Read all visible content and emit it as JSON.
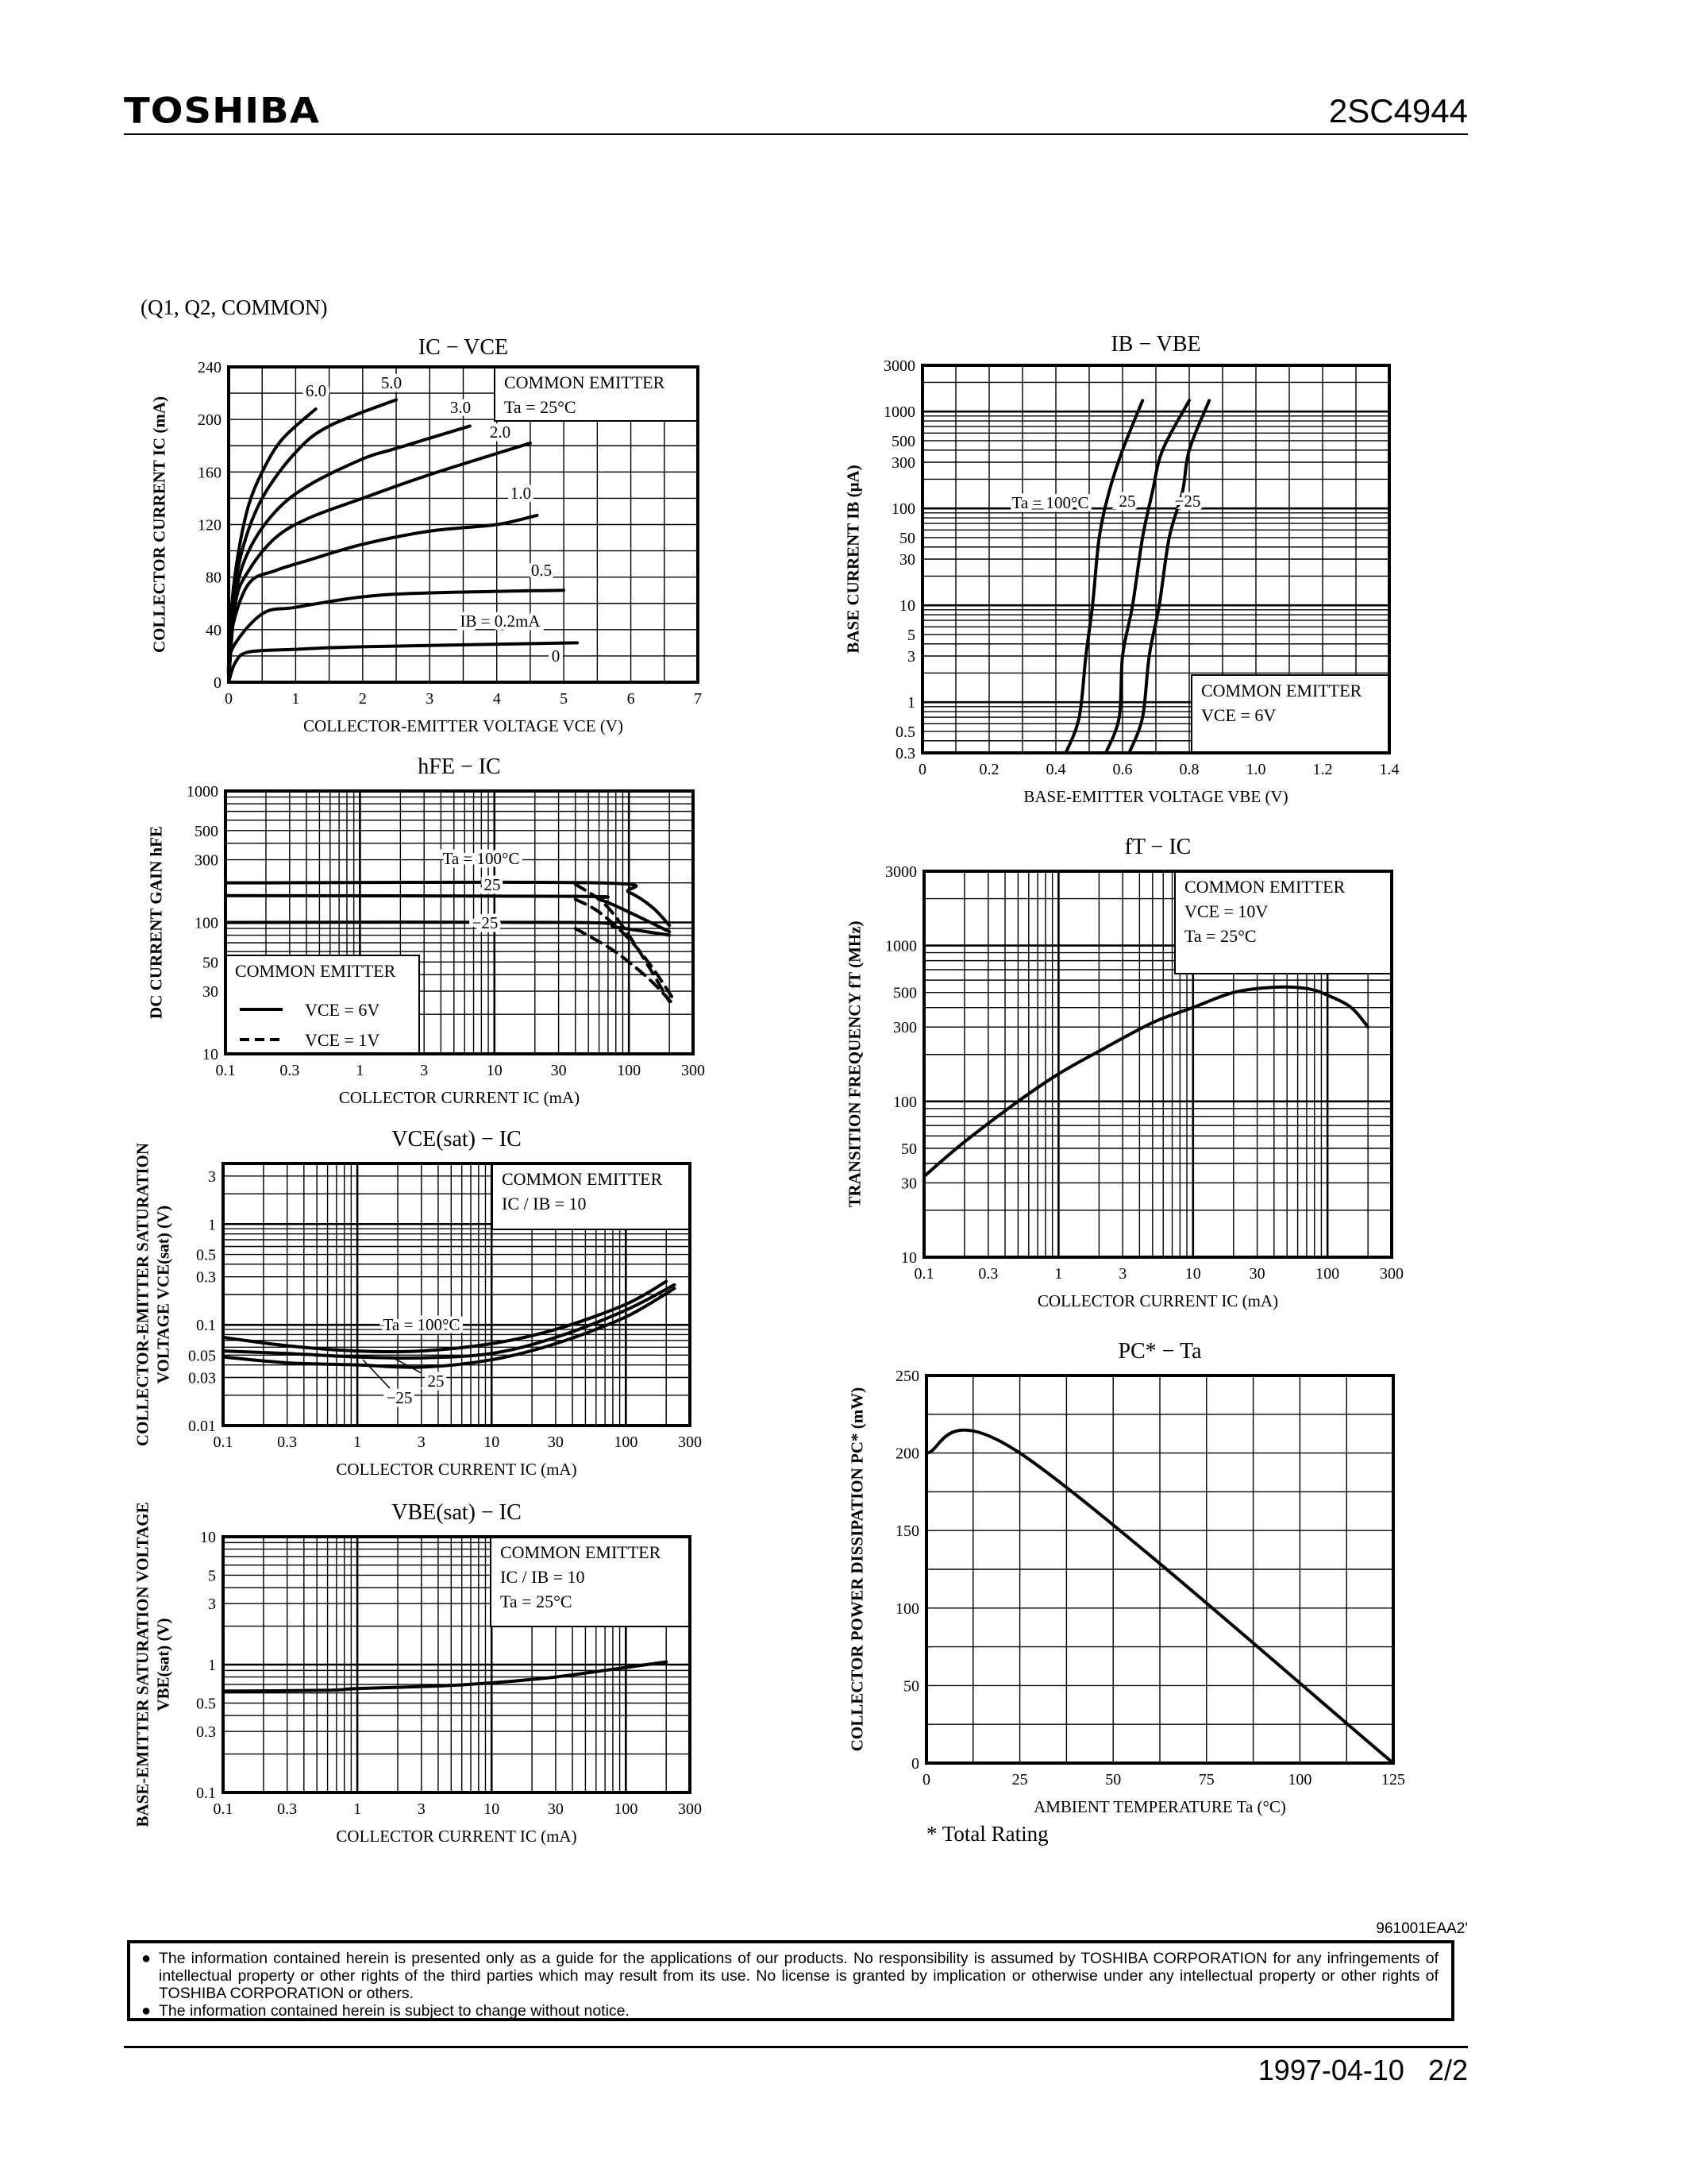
{
  "header": {
    "brand": "TOSHIBA",
    "part_number": "2SC4944"
  },
  "subtitle": "(Q1, Q2, COMMON)",
  "footnote": "* Total Rating",
  "footer": {
    "code": "961001EAA2'",
    "notices": [
      "The information contained herein is presented only as a guide for the applications of our products. No responsibility is assumed by TOSHIBA CORPORATION for any infringements of intellectual property or other rights of the third parties which may result from its use. No license is granted by implication or otherwise under any intellectual property or other rights of TOSHIBA CORPORATION or others.",
      "The information contained herein is subject to change without notice."
    ],
    "bullet": "●",
    "date": "1997-04-10",
    "page": "2/2"
  },
  "chart_data": [
    {
      "type": "line",
      "title": "IC − VCE",
      "xlabel": "COLLECTOR-EMITTER VOLTAGE   VCE   (V)",
      "ylabel": [
        "COLLECTOR CURRENT   IC   (mA)"
      ],
      "x_scale": "linear",
      "y_scale": "linear",
      "xlim": [
        0,
        7
      ],
      "ylim": [
        0,
        240
      ],
      "grid": true,
      "xticks": [
        "0",
        "1",
        "2",
        "3",
        "4",
        "5",
        "6",
        "7"
      ],
      "yticks": [
        "0",
        "40",
        "80",
        "120",
        "160",
        "200",
        "240"
      ],
      "annotation": [
        "COMMON EMITTER",
        "Ta = 25°C"
      ],
      "curve_labels": [
        "6.0",
        "5.0",
        "3.0",
        "2.0",
        "1.0",
        "0.5",
        "IB = 0.2mA",
        "0"
      ],
      "series": [
        {
          "name": "6.0",
          "style": "solid",
          "points": [
            [
              0,
              0
            ],
            [
              0.05,
              60
            ],
            [
              0.15,
              100
            ],
            [
              0.3,
              135
            ],
            [
              0.5,
              160
            ],
            [
              0.8,
              185
            ],
            [
              1.3,
              208
            ]
          ]
        },
        {
          "name": "5.0",
          "style": "solid",
          "points": [
            [
              0,
              0
            ],
            [
              0.05,
              55
            ],
            [
              0.2,
              100
            ],
            [
              0.5,
              140
            ],
            [
              1,
              175
            ],
            [
              1.5,
              195
            ],
            [
              2.5,
              215
            ]
          ]
        },
        {
          "name": "3.0",
          "style": "solid",
          "points": [
            [
              0,
              0
            ],
            [
              0.1,
              65
            ],
            [
              0.3,
              100
            ],
            [
              0.7,
              130
            ],
            [
              1.2,
              150
            ],
            [
              2,
              170
            ],
            [
              2.5,
              178
            ],
            [
              3.6,
              195
            ]
          ]
        },
        {
          "name": "2.0",
          "style": "solid",
          "points": [
            [
              0,
              0
            ],
            [
              0.1,
              60
            ],
            [
              0.3,
              85
            ],
            [
              0.7,
              110
            ],
            [
              1.2,
              125
            ],
            [
              2,
              140
            ],
            [
              3,
              158
            ],
            [
              4.5,
              182
            ]
          ]
        },
        {
          "name": "1.0",
          "style": "solid",
          "points": [
            [
              0,
              0
            ],
            [
              0.05,
              40
            ],
            [
              0.3,
              75
            ],
            [
              0.7,
              85
            ],
            [
              1.2,
              93
            ],
            [
              2,
              105
            ],
            [
              3,
              115
            ],
            [
              4,
              120
            ],
            [
              4.6,
              127
            ]
          ]
        },
        {
          "name": "0.5",
          "style": "solid",
          "points": [
            [
              0,
              0
            ],
            [
              0.05,
              25
            ],
            [
              0.5,
              52
            ],
            [
              1,
              57
            ],
            [
              2,
              65
            ],
            [
              3,
              68
            ],
            [
              5,
              70
            ]
          ]
        },
        {
          "name": "IB = 0.2mA",
          "style": "solid",
          "points": [
            [
              0,
              0
            ],
            [
              0.1,
              15
            ],
            [
              0.3,
              23
            ],
            [
              1,
              25
            ],
            [
              2,
              27
            ],
            [
              5.2,
              30
            ]
          ]
        },
        {
          "name": "0",
          "style": "solid",
          "points": [
            [
              0,
              0
            ],
            [
              5.1,
              0
            ]
          ]
        }
      ]
    },
    {
      "type": "line",
      "title": "IB − VBE",
      "xlabel": "BASE-EMITTER VOLTAGE   VBE   (V)",
      "ylabel": [
        "BASE CURRENT   IB   (μA)"
      ],
      "x_scale": "linear",
      "y_scale": "log",
      "xlim": [
        0,
        1.4
      ],
      "ylim": [
        0.3,
        3000
      ],
      "grid": true,
      "xticks": [
        "0",
        "0.2",
        "0.4",
        "0.6",
        "0.8",
        "1.0",
        "1.2",
        "1.4"
      ],
      "yticks": [
        "3000",
        "1000",
        "500",
        "300",
        "100",
        "50",
        "30",
        "10",
        "5",
        "3",
        "1",
        "0.5",
        "0.3"
      ],
      "annotation": [
        "COMMON EMITTER",
        "VCE = 6V"
      ],
      "curve_labels": [
        "Ta = 100°C",
        "25",
        "−25"
      ],
      "series": [
        {
          "name": "Ta = 100°C",
          "style": "solid",
          "points": [
            [
              0.43,
              0.3
            ],
            [
              0.47,
              0.7
            ],
            [
              0.49,
              3
            ],
            [
              0.51,
              10
            ],
            [
              0.53,
              50
            ],
            [
              0.56,
              150
            ],
            [
              0.6,
              400
            ],
            [
              0.66,
              1300
            ]
          ]
        },
        {
          "name": "25",
          "style": "solid",
          "points": [
            [
              0.55,
              0.3
            ],
            [
              0.59,
              0.7
            ],
            [
              0.6,
              3
            ],
            [
              0.63,
              10
            ],
            [
              0.66,
              50
            ],
            [
              0.69,
              150
            ],
            [
              0.72,
              400
            ],
            [
              0.8,
              1300
            ]
          ]
        },
        {
          "name": "−25",
          "style": "solid",
          "points": [
            [
              0.62,
              0.3
            ],
            [
              0.66,
              0.7
            ],
            [
              0.68,
              3
            ],
            [
              0.71,
              10
            ],
            [
              0.74,
              50
            ],
            [
              0.78,
              150
            ],
            [
              0.8,
              400
            ],
            [
              0.86,
              1300
            ]
          ]
        }
      ]
    },
    {
      "type": "line",
      "title": "hFE − IC",
      "xlabel": "COLLECTOR CURRENT   IC   (mA)",
      "ylabel": [
        "DC CURRENT GAIN   hFE"
      ],
      "x_scale": "log",
      "y_scale": "log",
      "xlim": [
        0.1,
        300
      ],
      "ylim": [
        10,
        1000
      ],
      "grid": true,
      "xticks": [
        "0.1",
        "0.3",
        "1",
        "3",
        "10",
        "30",
        "100",
        "300"
      ],
      "yticks": [
        "1000",
        "500",
        "300",
        "100",
        "50",
        "30",
        "10"
      ],
      "annotation": [
        "COMMON EMITTER"
      ],
      "legend": [
        {
          "label": "VCE = 6V",
          "style": "solid"
        },
        {
          "label": "VCE = 1V",
          "style": "dashed"
        }
      ],
      "curve_labels": [
        "Ta = 100°C",
        "25",
        "−25"
      ],
      "series": [
        {
          "style": "solid",
          "points": [
            [
              0.1,
              200
            ],
            [
              60,
              200
            ],
            [
              100,
              170
            ],
            [
              150,
              130
            ],
            [
              200,
              95
            ]
          ]
        },
        {
          "style": "solid",
          "points": [
            [
              0.1,
              160
            ],
            [
              40,
              158
            ],
            [
              60,
              150
            ],
            [
              100,
              120
            ],
            [
              200,
              85
            ]
          ]
        },
        {
          "style": "solid",
          "points": [
            [
              0.1,
              100
            ],
            [
              40,
              100
            ],
            [
              80,
              92
            ],
            [
              200,
              80
            ]
          ]
        },
        {
          "style": "dashed",
          "points": [
            [
              40,
              195
            ],
            [
              60,
              150
            ],
            [
              80,
              110
            ],
            [
              120,
              60
            ],
            [
              200,
              25
            ]
          ]
        },
        {
          "style": "dashed",
          "points": [
            [
              40,
              150
            ],
            [
              60,
              120
            ],
            [
              100,
              75
            ],
            [
              150,
              45
            ],
            [
              220,
              25
            ]
          ]
        },
        {
          "style": "dashed",
          "points": [
            [
              40,
              90
            ],
            [
              70,
              65
            ],
            [
              100,
              50
            ],
            [
              150,
              35
            ],
            [
              220,
              23
            ]
          ]
        }
      ]
    },
    {
      "type": "line",
      "title": "fT − IC",
      "xlabel": "COLLECTOR CURRENT   IC   (mA)",
      "ylabel": [
        "TRANSITION FREQUENCY   fT   (MHz)"
      ],
      "x_scale": "log",
      "y_scale": "log",
      "xlim": [
        0.1,
        300
      ],
      "ylim": [
        10,
        3000
      ],
      "grid": true,
      "xticks": [
        "0.1",
        "0.3",
        "1",
        "3",
        "10",
        "30",
        "100",
        "300"
      ],
      "yticks": [
        "3000",
        "1000",
        "500",
        "300",
        "100",
        "50",
        "30",
        "10"
      ],
      "annotation": [
        "COMMON EMITTER",
        "VCE = 10V",
        "Ta = 25°C"
      ],
      "series": [
        {
          "style": "solid",
          "points": [
            [
              0.1,
              33
            ],
            [
              0.2,
              55
            ],
            [
              0.5,
              100
            ],
            [
              1,
              150
            ],
            [
              2,
              210
            ],
            [
              5,
              320
            ],
            [
              10,
              400
            ],
            [
              20,
              500
            ],
            [
              40,
              540
            ],
            [
              70,
              530
            ],
            [
              100,
              480
            ],
            [
              150,
              400
            ],
            [
              200,
              300
            ]
          ]
        }
      ]
    },
    {
      "type": "line",
      "title": "VCE(sat) − IC",
      "xlabel": "COLLECTOR CURRENT   IC   (mA)",
      "ylabel": [
        "COLLECTOR-EMITTER SATURATION",
        "VOLTAGE   VCE(sat)   (V)"
      ],
      "x_scale": "log",
      "y_scale": "log",
      "xlim": [
        0.1,
        300
      ],
      "ylim": [
        0.01,
        4
      ],
      "grid": true,
      "xticks": [
        "0.1",
        "0.3",
        "1",
        "3",
        "10",
        "30",
        "100",
        "300"
      ],
      "yticks": [
        "3",
        "1",
        "0.5",
        "0.3",
        "0.1",
        "0.05",
        "0.03",
        "0.01"
      ],
      "annotation": [
        "COMMON EMITTER",
        "IC / IB = 10"
      ],
      "curve_labels": [
        "Ta = 100°C",
        "25",
        "−25"
      ],
      "series": [
        {
          "name": "Ta = 100°C",
          "style": "solid",
          "points": [
            [
              0.1,
              0.075
            ],
            [
              0.3,
              0.062
            ],
            [
              1,
              0.055
            ],
            [
              3,
              0.055
            ],
            [
              10,
              0.065
            ],
            [
              30,
              0.09
            ],
            [
              100,
              0.16
            ],
            [
              200,
              0.27
            ]
          ]
        },
        {
          "name": "25",
          "style": "solid",
          "points": [
            [
              0.1,
              0.055
            ],
            [
              0.3,
              0.052
            ],
            [
              1,
              0.048
            ],
            [
              3,
              0.047
            ],
            [
              10,
              0.052
            ],
            [
              30,
              0.075
            ],
            [
              100,
              0.14
            ],
            [
              230,
              0.25
            ]
          ]
        },
        {
          "name": "−25",
          "style": "solid",
          "points": [
            [
              0.1,
              0.048
            ],
            [
              0.3,
              0.042
            ],
            [
              1,
              0.04
            ],
            [
              3,
              0.038
            ],
            [
              10,
              0.045
            ],
            [
              30,
              0.065
            ],
            [
              100,
              0.12
            ],
            [
              230,
              0.23
            ]
          ]
        }
      ]
    },
    {
      "type": "line",
      "title": "VBE(sat) − IC",
      "xlabel": "COLLECTOR CURRENT   IC   (mA)",
      "ylabel": [
        "BASE-EMITTER SATURATION VOLTAGE",
        "VBE(sat)   (V)"
      ],
      "x_scale": "log",
      "y_scale": "log",
      "xlim": [
        0.1,
        300
      ],
      "ylim": [
        0.1,
        10
      ],
      "grid": true,
      "xticks": [
        "0.1",
        "0.3",
        "1",
        "3",
        "10",
        "30",
        "100",
        "300"
      ],
      "yticks": [
        "10",
        "5",
        "3",
        "1",
        "0.5",
        "0.3",
        "0.1"
      ],
      "annotation": [
        "COMMON EMITTER",
        "IC / IB = 10",
        "Ta = 25°C"
      ],
      "series": [
        {
          "style": "solid",
          "points": [
            [
              0.1,
              0.62
            ],
            [
              0.6,
              0.63
            ],
            [
              1,
              0.65
            ],
            [
              4,
              0.68
            ],
            [
              10,
              0.72
            ],
            [
              30,
              0.8
            ],
            [
              100,
              0.95
            ],
            [
              200,
              1.05
            ]
          ]
        }
      ]
    },
    {
      "type": "line",
      "title": "PC* − Ta",
      "xlabel": "AMBIENT TEMPERATURE   Ta   (°C)",
      "ylabel": [
        "COLLECTOR POWER DISSIPATION   PC*   (mW)"
      ],
      "x_scale": "linear",
      "y_scale": "linear",
      "xlim": [
        0,
        125
      ],
      "ylim": [
        0,
        250
      ],
      "grid": true,
      "xticks": [
        "0",
        "25",
        "50",
        "75",
        "100",
        "125"
      ],
      "yticks": [
        "0",
        "50",
        "100",
        "150",
        "200",
        "250"
      ],
      "series": [
        {
          "style": "solid",
          "points": [
            [
              0,
              200
            ],
            [
              25,
              200
            ],
            [
              125,
              0
            ]
          ]
        }
      ]
    }
  ]
}
